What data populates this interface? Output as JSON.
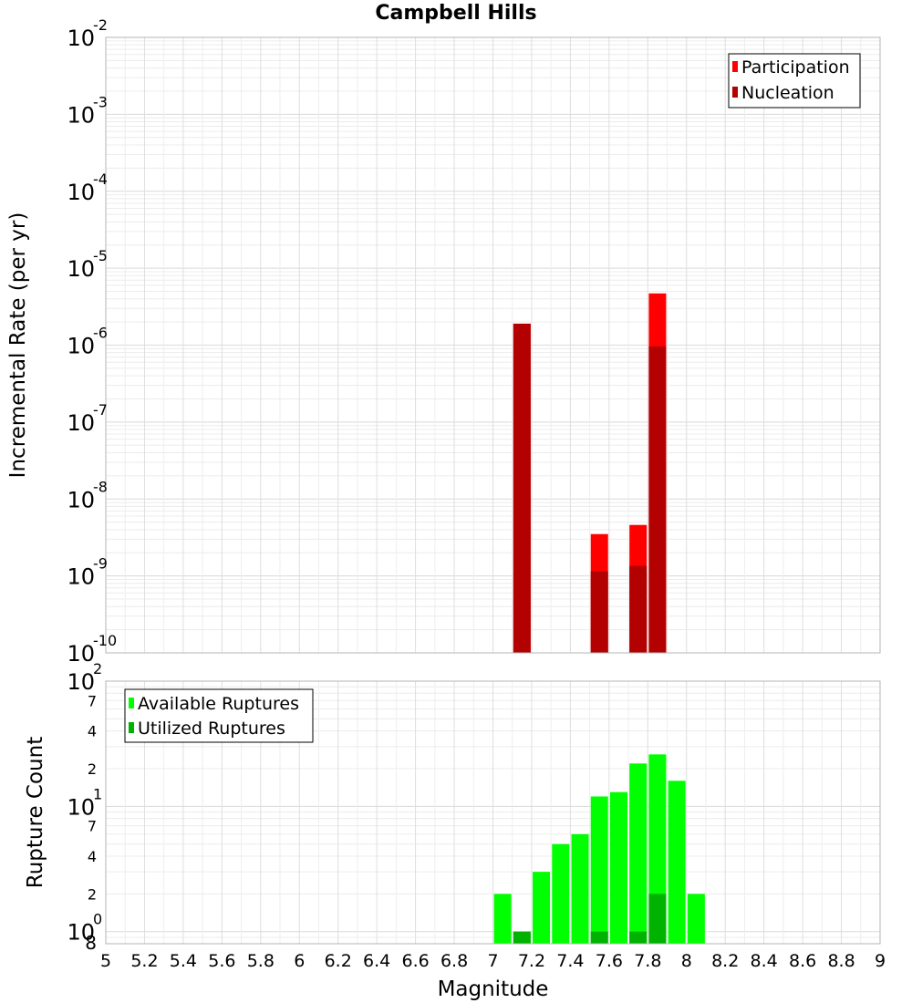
{
  "chart_data": [
    {
      "type": "bar",
      "title": "Campbell Hills",
      "ylabel": "Incremental Rate (per yr)",
      "y_scale": "log",
      "ylim": [
        1e-10,
        0.01
      ],
      "y_ticks": [
        {
          "value": 1e-10,
          "exp": "-10"
        },
        {
          "value": 1e-09,
          "exp": "-9"
        },
        {
          "value": 1e-08,
          "exp": "-8"
        },
        {
          "value": 1e-07,
          "exp": "-7"
        },
        {
          "value": 1e-06,
          "exp": "-6"
        },
        {
          "value": 1e-05,
          "exp": "-5"
        },
        {
          "value": 0.0001,
          "exp": "-4"
        },
        {
          "value": 0.001,
          "exp": "-3"
        },
        {
          "value": 0.01,
          "exp": "-2"
        }
      ],
      "tick_base": "10",
      "xlim": [
        5,
        9
      ],
      "grid": true,
      "legend_position": "top-right",
      "series": [
        {
          "name": "Participation",
          "color": "#ff0000",
          "points": [
            {
              "x": 7.15,
              "y": 1.9e-06
            },
            {
              "x": 7.55,
              "y": 3.5e-09
            },
            {
              "x": 7.75,
              "y": 4.6e-09
            },
            {
              "x": 7.85,
              "y": 4.7e-06
            }
          ]
        },
        {
          "name": "Nucleation",
          "color": "#b30000",
          "points": [
            {
              "x": 7.15,
              "y": 1.9e-06
            },
            {
              "x": 7.55,
              "y": 1.15e-09
            },
            {
              "x": 7.75,
              "y": 1.35e-09
            },
            {
              "x": 7.85,
              "y": 9.6e-07
            }
          ]
        }
      ]
    },
    {
      "type": "bar",
      "xlabel": "Magnitude",
      "ylabel": "Rupture Count",
      "y_scale": "log",
      "ylim": [
        0.8,
        100
      ],
      "y_ticks": [
        {
          "value": 1,
          "exp": "0"
        },
        {
          "value": 10,
          "exp": "1"
        },
        {
          "value": 100,
          "exp": "2"
        }
      ],
      "y_minor_labels": [
        {
          "value": 0.8,
          "label": "8"
        },
        {
          "value": 2,
          "label": "2"
        },
        {
          "value": 4,
          "label": "4"
        },
        {
          "value": 7,
          "label": "7"
        },
        {
          "value": 20,
          "label": "2"
        },
        {
          "value": 40,
          "label": "4"
        },
        {
          "value": 70,
          "label": "7"
        }
      ],
      "tick_base": "10",
      "xlim": [
        5,
        9
      ],
      "x_ticks": [
        "5",
        "5.2",
        "5.4",
        "5.6",
        "5.8",
        "6",
        "6.2",
        "6.4",
        "6.6",
        "6.8",
        "7",
        "7.2",
        "7.4",
        "7.6",
        "7.8",
        "8",
        "8.2",
        "8.4",
        "8.6",
        "8.8",
        "9"
      ],
      "grid": true,
      "legend_position": "top-left",
      "series": [
        {
          "name": "Available Ruptures",
          "color": "#00ff00",
          "points": [
            {
              "x": 7.05,
              "y": 2
            },
            {
              "x": 7.15,
              "y": 1
            },
            {
              "x": 7.25,
              "y": 3
            },
            {
              "x": 7.35,
              "y": 5
            },
            {
              "x": 7.45,
              "y": 6
            },
            {
              "x": 7.55,
              "y": 12
            },
            {
              "x": 7.65,
              "y": 13
            },
            {
              "x": 7.75,
              "y": 22
            },
            {
              "x": 7.85,
              "y": 26
            },
            {
              "x": 7.95,
              "y": 16
            },
            {
              "x": 8.05,
              "y": 2
            }
          ]
        },
        {
          "name": "Utilized Ruptures",
          "color": "#00b300",
          "points": [
            {
              "x": 7.15,
              "y": 1
            },
            {
              "x": 7.55,
              "y": 1
            },
            {
              "x": 7.75,
              "y": 1
            },
            {
              "x": 7.85,
              "y": 2
            }
          ]
        }
      ]
    }
  ]
}
